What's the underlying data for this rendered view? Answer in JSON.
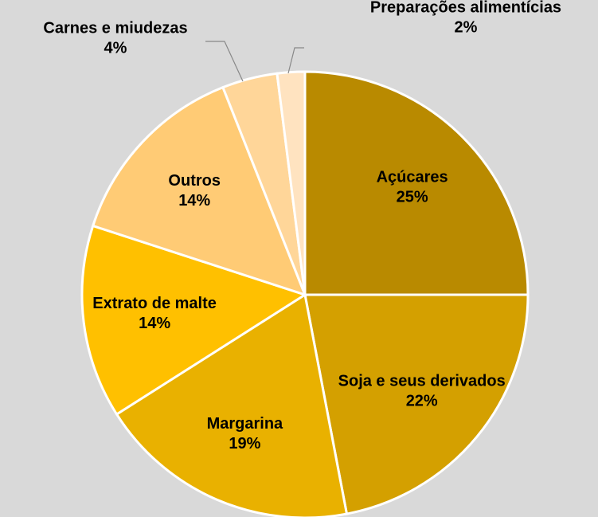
{
  "chart_data": {
    "type": "pie",
    "categories": [
      "Açúcares",
      "Soja e seus derivados",
      "Margarina",
      "Extrato de malte",
      "Outros",
      "Carnes e miudezas",
      "Preparações alimentícias"
    ],
    "values": [
      25,
      22,
      19,
      14,
      14,
      4,
      2
    ],
    "value_labels": [
      "25%",
      "22%",
      "19%",
      "14%",
      "14%",
      "4%",
      "2%"
    ],
    "colors": [
      "#b98a00",
      "#d4a000",
      "#e9b100",
      "#ffc000",
      "#ffcb75",
      "#ffd699",
      "#ffe3c0"
    ]
  }
}
